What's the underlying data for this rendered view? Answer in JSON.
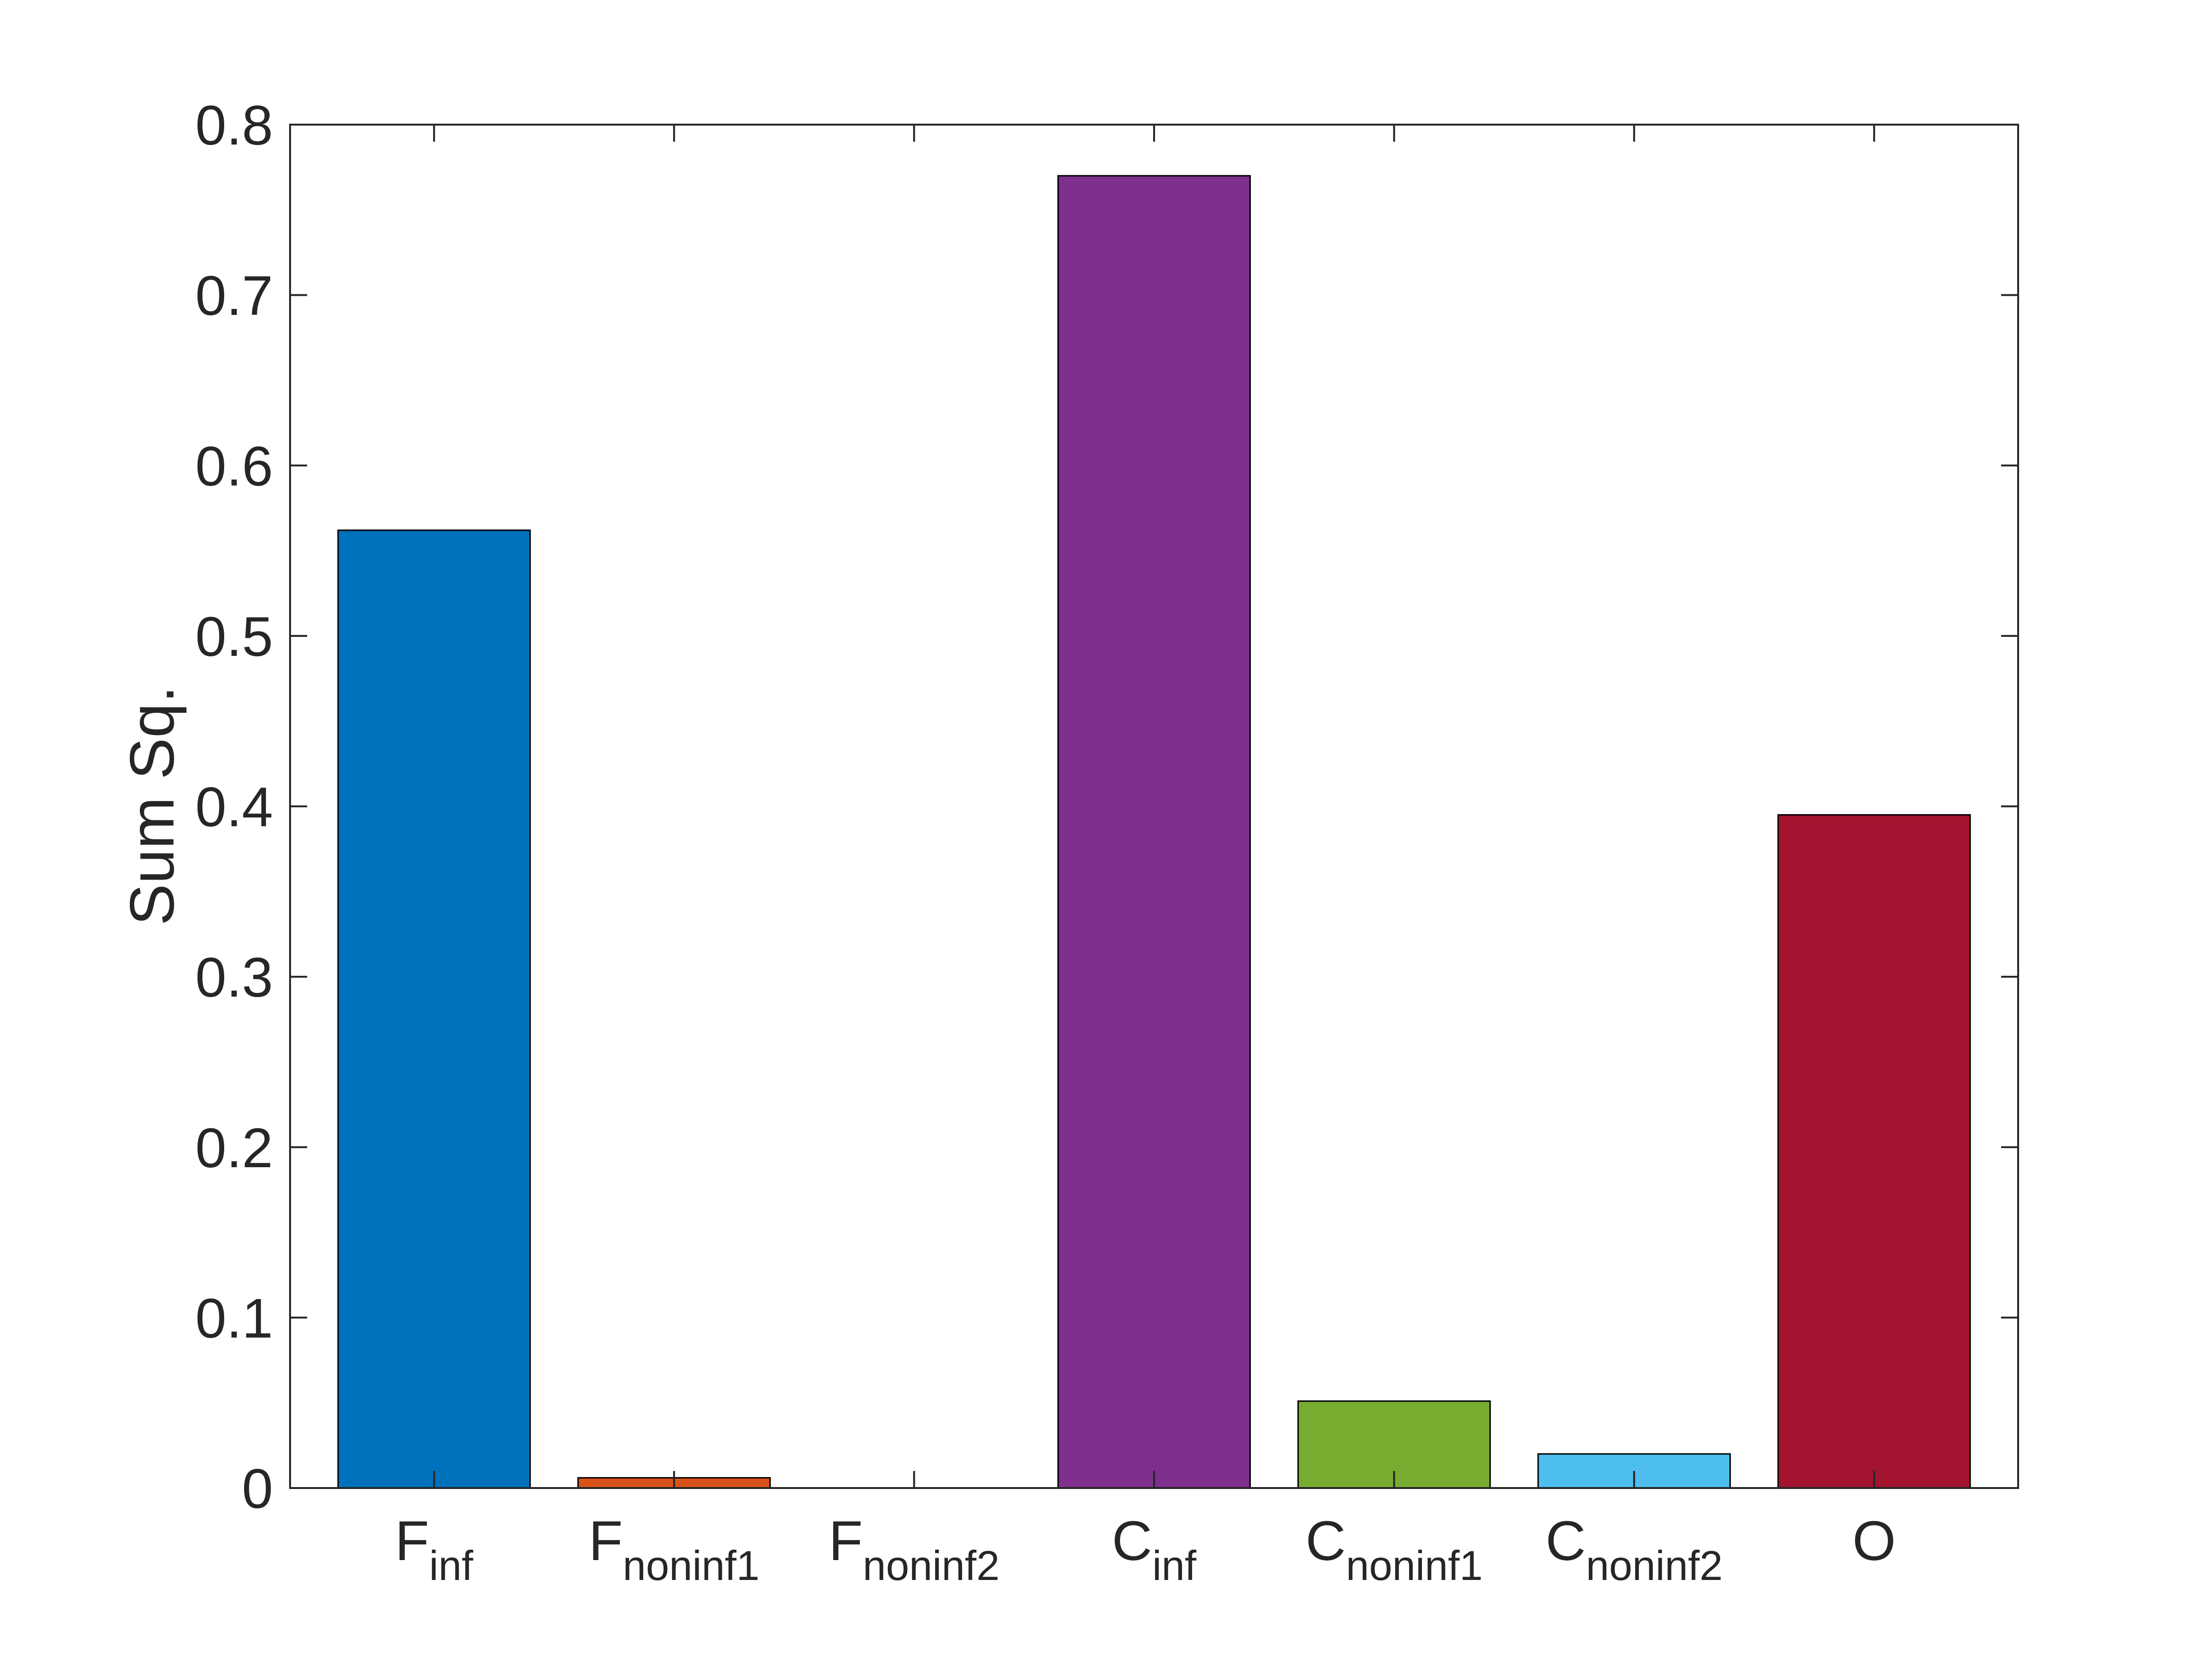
{
  "chart_data": {
    "type": "bar",
    "categories": [
      {
        "base": "F",
        "sub": "inf"
      },
      {
        "base": "F",
        "sub": "noninf1"
      },
      {
        "base": "F",
        "sub": "noninf2"
      },
      {
        "base": "C",
        "sub": "inf"
      },
      {
        "base": "C",
        "sub": "noninf1"
      },
      {
        "base": "C",
        "sub": "noninf2"
      },
      {
        "base": "O",
        "sub": ""
      }
    ],
    "values": [
      0.562,
      0.006,
      0.0,
      0.77,
      0.051,
      0.02,
      0.395
    ],
    "colors": [
      "#0072BD",
      "#D95319",
      "#EDB120",
      "#7E2F8E",
      "#77AC30",
      "#4DBEEE",
      "#A2142F"
    ],
    "title": "",
    "xlabel": "",
    "ylabel": "Sum Sq.",
    "ylim": [
      0,
      0.8
    ],
    "yticks": [
      0,
      0.1,
      0.2,
      0.3,
      0.4,
      0.5,
      0.6,
      0.7,
      0.8
    ],
    "ytick_labels": [
      "0",
      "0.1",
      "0.2",
      "0.3",
      "0.4",
      "0.5",
      "0.6",
      "0.7",
      "0.8"
    ],
    "grid": false,
    "legend": false
  }
}
